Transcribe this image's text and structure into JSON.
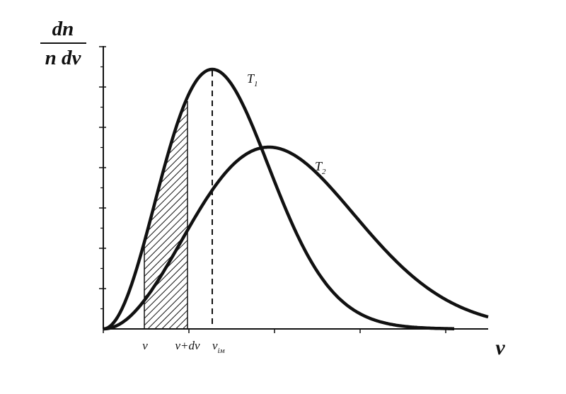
{
  "chart_data": {
    "type": "line",
    "ylabel": {
      "numerator": "dn",
      "denominator": "n dv"
    },
    "xlabel": "v",
    "series": [
      {
        "name": "T",
        "subscript": "1"
      },
      {
        "name": "T",
        "subscript": "2"
      }
    ],
    "x_marks": [
      {
        "text": "v",
        "subscript": ""
      },
      {
        "text": "v+dv",
        "subscript": ""
      },
      {
        "text": "v",
        "subscript": "ім"
      }
    ],
    "hatched_interval": [
      "v",
      "v+dv"
    ],
    "dashed_line_at": "v_ім",
    "axis_ticks": {
      "x": 4,
      "y_major": 7,
      "y_minor": 7
    },
    "legend": "inline labels next to curves",
    "grid": false,
    "colors": {
      "curve": "#111111",
      "axis": "#111111",
      "hatch": "#111111"
    }
  }
}
